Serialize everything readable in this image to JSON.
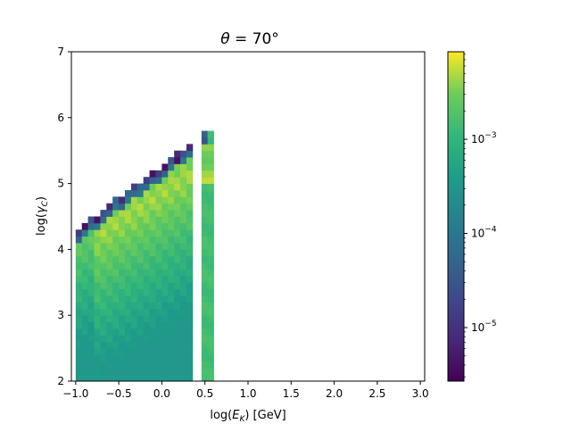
{
  "chart_data": {
    "type": "heatmap",
    "title_prefix": "θ",
    "title_suffix": " = 70°",
    "xlabel_prefix": "log(",
    "xlabel_var": "E",
    "xlabel_sub": "K",
    "xlabel_suffix": ") [GeV]",
    "ylabel_prefix": "log(",
    "ylabel_var": "γ",
    "ylabel_sub": "C",
    "ylabel_suffix": ")",
    "xlim": [
      -1.05,
      3.05
    ],
    "ylim": [
      2,
      7
    ],
    "xticks": [
      "−1.0",
      "−0.5",
      "0.0",
      "0.5",
      "1.0",
      "1.5",
      "2.0",
      "2.5",
      "3.0"
    ],
    "xtick_values": [
      -1.0,
      -0.5,
      0.0,
      0.5,
      1.0,
      1.5,
      2.0,
      2.5,
      3.0
    ],
    "yticks": [
      "2",
      "3",
      "4",
      "5",
      "6",
      "7"
    ],
    "ytick_values": [
      2,
      3,
      4,
      5,
      6,
      7
    ],
    "bin_width_x": 0.0714,
    "bin_height_y": 0.1,
    "colorbar": {
      "scale": "log",
      "min": 2.7e-06,
      "max": 0.0085,
      "colormap": "viridis",
      "ticks": [
        {
          "value": 1e-05,
          "base": "10",
          "exp": "−5"
        },
        {
          "value": 0.0001,
          "base": "10",
          "exp": "−4"
        },
        {
          "value": 0.001,
          "base": "10",
          "exp": "−3"
        }
      ]
    }
  }
}
